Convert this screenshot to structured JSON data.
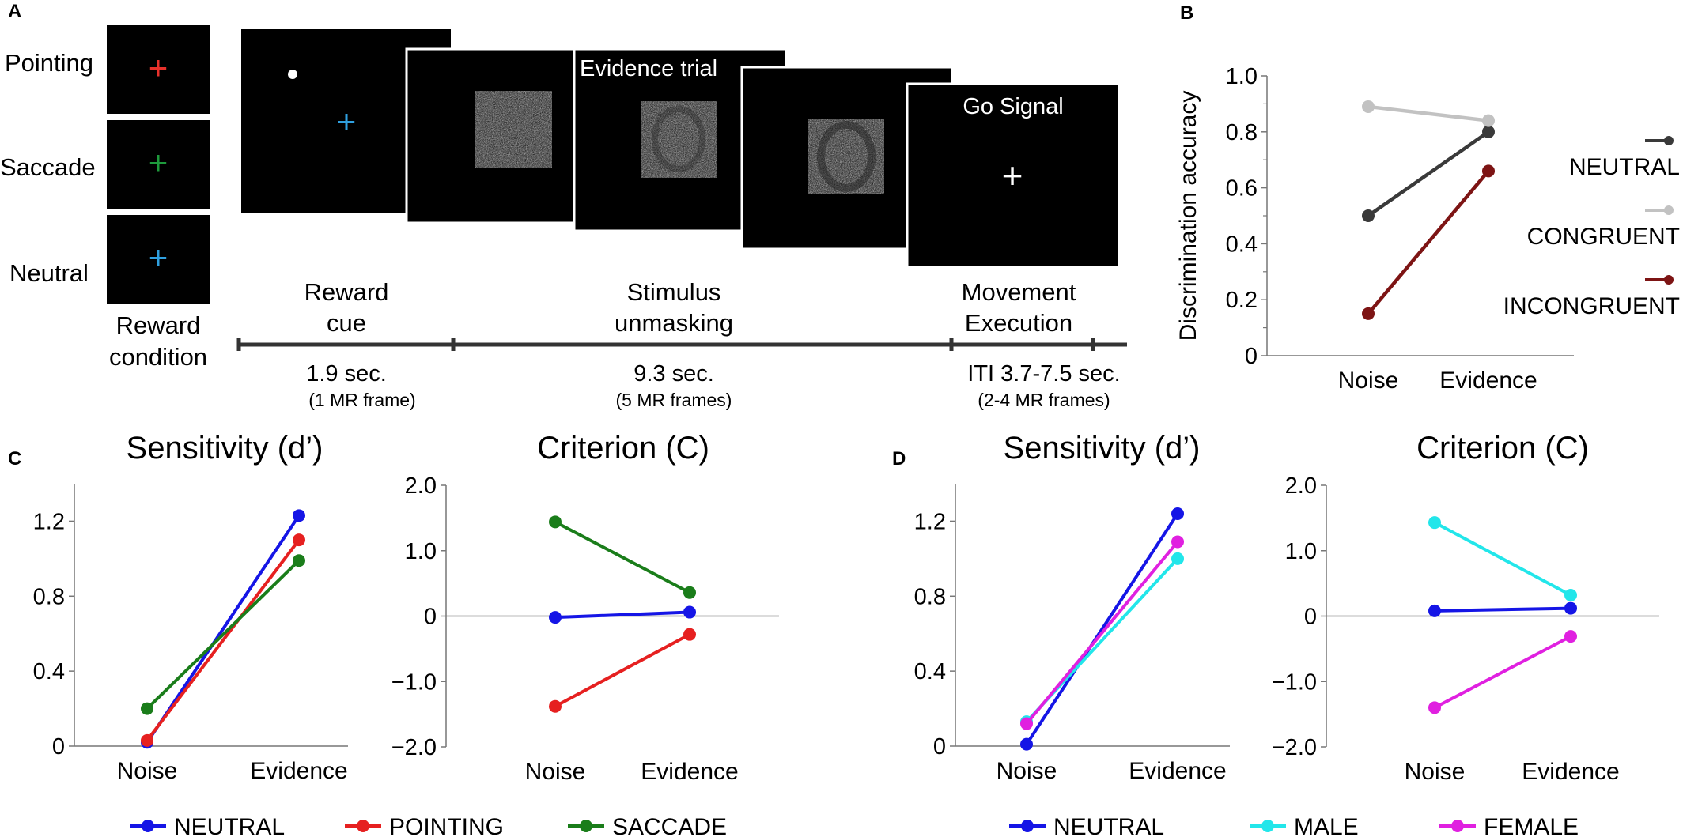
{
  "panels": {
    "A": {
      "letter": "A",
      "conditions": [
        {
          "label": "Pointing",
          "cross_color": "#e8312b"
        },
        {
          "label": "Saccade",
          "cross_color": "#1e9a3c"
        },
        {
          "label": "Neutral",
          "cross_color": "#2fa0e0"
        }
      ],
      "reward_condition_label": [
        "Reward",
        "condition"
      ],
      "evidence_trial_label": "Evidence trial",
      "go_signal_label": "Go Signal",
      "phases": [
        {
          "title": [
            "Reward",
            "cue"
          ],
          "duration": "1.9 sec.",
          "frames": "(1 MR frame)"
        },
        {
          "title": [
            "Stimulus",
            "unmasking"
          ],
          "duration": "9.3 sec.",
          "frames": "(5 MR frames)"
        },
        {
          "title": [
            "Movement",
            "Execution"
          ],
          "duration": "ITI 3.7-7.5 sec.",
          "frames": "(2-4 MR frames)"
        }
      ]
    },
    "B": {
      "letter": "B"
    },
    "C": {
      "letter": "C"
    },
    "D": {
      "letter": "D"
    }
  },
  "legends": {
    "C": [
      {
        "label": "NEUTRAL",
        "color": "#1515e6"
      },
      {
        "label": "POINTING",
        "color": "#e62020"
      },
      {
        "label": "SACCADE",
        "color": "#1a7d1a"
      }
    ],
    "D": [
      {
        "label": "NEUTRAL",
        "color": "#1515e6"
      },
      {
        "label": "MALE",
        "color": "#22e6ea"
      },
      {
        "label": "FEMALE",
        "color": "#e020e0"
      }
    ]
  },
  "chart_data": [
    {
      "panel": "B",
      "type": "line",
      "categories": [
        "Noise",
        "Evidence"
      ],
      "ylabel": "Discrimination accuracy",
      "ylim": [
        0,
        1.0
      ],
      "yticks": [
        "0",
        "0.2",
        "0.4",
        "0.6",
        "0.8",
        "1.0"
      ],
      "legend": "right",
      "series": [
        {
          "name": "NEUTRAL",
          "color": "#3a3a3a",
          "values": [
            0.5,
            0.8
          ]
        },
        {
          "name": "CONGRUENT",
          "color": "#c2c2c2",
          "values": [
            0.89,
            0.84
          ]
        },
        {
          "name": "INCONGRUENT",
          "color": "#7d1414",
          "values": [
            0.15,
            0.66
          ]
        }
      ]
    },
    {
      "panel": "C",
      "type": "line",
      "title": "Sensitivity (d’)",
      "categories": [
        "Noise",
        "Evidence"
      ],
      "ylim": [
        0,
        1.4
      ],
      "yticks": [
        "0",
        "0.4",
        "0.8",
        "1.2"
      ],
      "series": [
        {
          "name": "NEUTRAL",
          "color": "#1515e6",
          "values": [
            0.02,
            1.23
          ]
        },
        {
          "name": "POINTING",
          "color": "#e62020",
          "values": [
            0.03,
            1.1
          ]
        },
        {
          "name": "SACCADE",
          "color": "#1a7d1a",
          "values": [
            0.2,
            0.99
          ]
        }
      ]
    },
    {
      "panel": "C",
      "type": "line",
      "title": "Criterion (C)",
      "categories": [
        "Noise",
        "Evidence"
      ],
      "ylim": [
        -2.0,
        2.0
      ],
      "yticks": [
        "2.0",
        "1.0",
        "0",
        "−1.0",
        "−2.0"
      ],
      "series": [
        {
          "name": "NEUTRAL",
          "color": "#1515e6",
          "values": [
            -0.02,
            0.06
          ]
        },
        {
          "name": "POINTING",
          "color": "#e62020",
          "values": [
            -1.38,
            -0.28
          ]
        },
        {
          "name": "SACCADE",
          "color": "#1a7d1a",
          "values": [
            1.44,
            0.36
          ]
        }
      ]
    },
    {
      "panel": "D",
      "type": "line",
      "title": "Sensitivity (d’)",
      "categories": [
        "Noise",
        "Evidence"
      ],
      "ylim": [
        0,
        1.4
      ],
      "yticks": [
        "0",
        "0.4",
        "0.8",
        "1.2"
      ],
      "series": [
        {
          "name": "NEUTRAL",
          "color": "#1515e6",
          "values": [
            0.01,
            1.24
          ]
        },
        {
          "name": "MALE",
          "color": "#22e6ea",
          "values": [
            0.13,
            1.0
          ]
        },
        {
          "name": "FEMALE",
          "color": "#e020e0",
          "values": [
            0.12,
            1.09
          ]
        }
      ]
    },
    {
      "panel": "D",
      "type": "line",
      "title": "Criterion (C)",
      "categories": [
        "Noise",
        "Evidence"
      ],
      "ylim": [
        -2.0,
        2.0
      ],
      "yticks": [
        "2.0",
        "1.0",
        "0",
        "−1.0",
        "−2.0"
      ],
      "series": [
        {
          "name": "NEUTRAL",
          "color": "#1515e6",
          "values": [
            0.08,
            0.12
          ]
        },
        {
          "name": "MALE",
          "color": "#22e6ea",
          "values": [
            1.43,
            0.32
          ]
        },
        {
          "name": "FEMALE",
          "color": "#e020e0",
          "values": [
            -1.4,
            -0.31
          ]
        }
      ]
    }
  ]
}
